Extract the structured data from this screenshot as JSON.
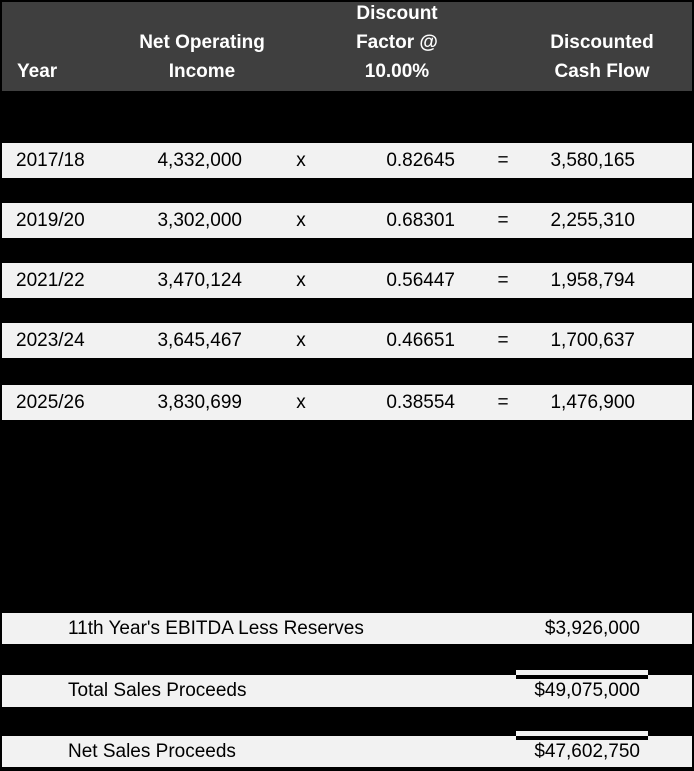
{
  "colors": {
    "background": "#000000",
    "header_fill": "#3f3f3f",
    "header_text": "#ffffff",
    "band_fill": "#f2f2f2",
    "band_text": "#000000"
  },
  "table": {
    "header": {
      "year": "Year",
      "noi": "Net Operating\nIncome",
      "factor": "Discount\nFactor @\n10.00%",
      "dcf": "Discounted\nCash Flow"
    },
    "rows": [
      {
        "year": "2017/18",
        "noi": "4,332,000",
        "op": "x",
        "factor": "0.82645",
        "eq": "=",
        "dcf": "3,580,165"
      },
      {
        "year": "2019/20",
        "noi": "3,302,000",
        "op": "x",
        "factor": "0.68301",
        "eq": "=",
        "dcf": "2,255,310"
      },
      {
        "year": "2021/22",
        "noi": "3,470,124",
        "op": "x",
        "factor": "0.56447",
        "eq": "=",
        "dcf": "1,958,794"
      },
      {
        "year": "2023/24",
        "noi": "3,645,467",
        "op": "x",
        "factor": "0.46651",
        "eq": "=",
        "dcf": "1,700,637"
      },
      {
        "year": "2025/26",
        "noi": "3,830,699",
        "op": "x",
        "factor": "0.38554",
        "eq": "=",
        "dcf": "1,476,900"
      }
    ],
    "summary": [
      {
        "label": "11th Year's EBITDA Less Reserves",
        "value": "$3,926,000"
      },
      {
        "label": "Total Sales Proceeds",
        "value": "$49,075,000"
      },
      {
        "label": "Net Sales Proceeds",
        "value": "$47,602,750"
      }
    ]
  }
}
